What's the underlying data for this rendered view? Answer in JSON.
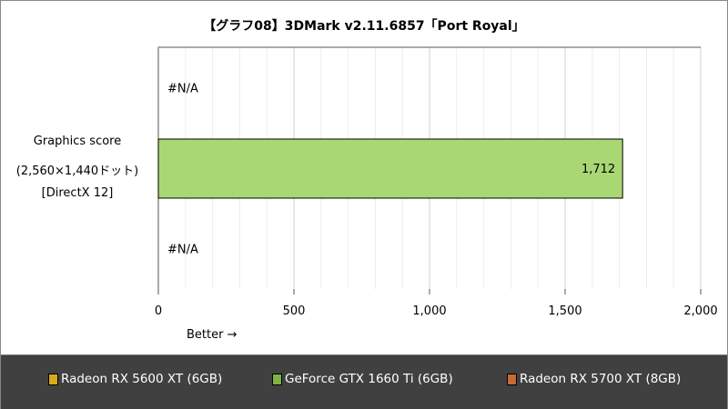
{
  "chart_data": {
    "type": "bar",
    "orientation": "horizontal",
    "title": "【グラフ08】3DMark v2.11.6857「Port Royal」",
    "category_lines": [
      "Graphics score",
      "(2,560×1,440ドット)",
      "[DirectX 12]"
    ],
    "series": [
      {
        "name": "Radeon RX 5600 XT (6GB)",
        "value": null,
        "label": "#N/A",
        "color": "#D9A81B"
      },
      {
        "name": "GeForce GTX 1660 Ti (6GB)",
        "value": 1712,
        "label": "1,712",
        "color": "#A9D774"
      },
      {
        "name": "Radeon RX 5700 XT (8GB)",
        "value": null,
        "label": "#N/A",
        "color": "#D07A3C"
      }
    ],
    "xlim": [
      0,
      2000
    ],
    "xticks": [
      0,
      500,
      1000,
      1500,
      2000
    ],
    "xtick_labels": [
      "0",
      "500",
      "1,000",
      "1,500",
      "2,000"
    ],
    "xlabel": "Better →",
    "grid": true,
    "legend_placement": "bottom",
    "legend_colors": [
      "#D9A81B",
      "#7CB342",
      "#C8693A"
    ]
  }
}
